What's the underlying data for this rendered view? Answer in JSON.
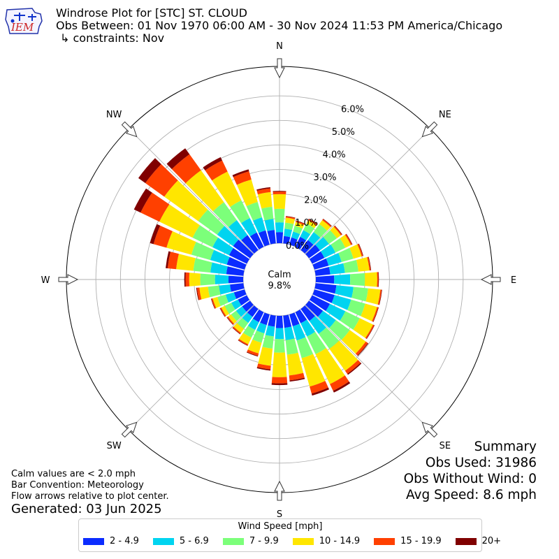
{
  "header": {
    "logo_text": "IEM",
    "title": "Windrose Plot for [STC] ST. CLOUD",
    "subtitle": "Obs Between: 01 Nov 1970 06:00 AM - 30 Nov 2024 11:53 PM America/Chicago",
    "constraints": "↳ constraints: Nov"
  },
  "notes": {
    "calm_note": "Calm values are < 2.0 mph",
    "bar_convention": "Bar Convention: Meteorology",
    "flow_note": "Flow arrows relative to plot center.",
    "generated": "Generated: 03 Jun 2025"
  },
  "summary": {
    "title": "Summary",
    "obs_used": "Obs Used: 31986",
    "obs_without_wind": "Obs Without Wind: 0",
    "avg_speed": "Avg Speed: 8.6 mph"
  },
  "center": {
    "label": "Calm",
    "value": "9.8%"
  },
  "legend": {
    "title": "Wind Speed [mph]",
    "items": [
      {
        "label": "2 - 4.9",
        "color": "#0b2cff"
      },
      {
        "label": "5 - 6.9",
        "color": "#00d4f0"
      },
      {
        "label": "7 - 9.9",
        "color": "#7cff7a"
      },
      {
        "label": "10 - 14.9",
        "color": "#ffe600"
      },
      {
        "label": "15 - 19.9",
        "color": "#ff4000"
      },
      {
        "label": "20+",
        "color": "#800000"
      }
    ]
  },
  "chart_data": {
    "type": "windrose",
    "calm_percent": 9.8,
    "radial_ticks": [
      "0.0%",
      "1.0%",
      "2.0%",
      "3.0%",
      "4.0%",
      "5.0%",
      "6.0%"
    ],
    "radial_max": 7.2,
    "compass_labels": [
      "N",
      "NE",
      "E",
      "SE",
      "S",
      "SW",
      "W",
      "NW"
    ],
    "directions_deg": [
      0,
      10,
      20,
      30,
      40,
      50,
      60,
      70,
      80,
      90,
      100,
      110,
      120,
      130,
      140,
      150,
      160,
      170,
      180,
      190,
      200,
      210,
      220,
      230,
      240,
      250,
      260,
      270,
      280,
      290,
      300,
      310,
      320,
      330,
      340,
      350
    ],
    "series": [
      {
        "name": "2 - 4.9",
        "values": [
          0.45,
          0.3,
          0.3,
          0.45,
          0.5,
          0.55,
          0.55,
          0.6,
          0.6,
          0.75,
          0.85,
          0.85,
          0.8,
          0.7,
          0.6,
          0.5,
          0.5,
          0.5,
          0.5,
          0.45,
          0.45,
          0.45,
          0.4,
          0.4,
          0.4,
          0.45,
          0.55,
          0.6,
          0.7,
          0.75,
          0.8,
          0.85,
          0.75,
          0.65,
          0.6,
          0.55
        ]
      },
      {
        "name": "5 - 6.9",
        "values": [
          0.4,
          0.3,
          0.25,
          0.3,
          0.4,
          0.45,
          0.5,
          0.55,
          0.6,
          0.65,
          0.7,
          0.7,
          0.7,
          0.65,
          0.65,
          0.6,
          0.6,
          0.5,
          0.45,
          0.4,
          0.35,
          0.35,
          0.3,
          0.3,
          0.3,
          0.35,
          0.45,
          0.55,
          0.65,
          0.7,
          0.75,
          0.8,
          0.75,
          0.65,
          0.55,
          0.45
        ]
      },
      {
        "name": "7 - 9.9",
        "values": [
          0.55,
          0.25,
          0.25,
          0.3,
          0.4,
          0.4,
          0.45,
          0.5,
          0.55,
          0.6,
          0.6,
          0.6,
          0.65,
          0.7,
          0.75,
          0.8,
          0.75,
          0.6,
          0.55,
          0.5,
          0.4,
          0.35,
          0.3,
          0.25,
          0.3,
          0.35,
          0.45,
          0.6,
          0.7,
          0.8,
          0.9,
          0.95,
          0.9,
          0.8,
          0.65,
          0.5
        ]
      },
      {
        "name": "10 - 14.9",
        "values": [
          0.6,
          0.2,
          0.15,
          0.15,
          0.2,
          0.2,
          0.25,
          0.35,
          0.45,
          0.5,
          0.5,
          0.5,
          0.6,
          0.8,
          1.1,
          1.35,
          1.2,
          0.85,
          1.0,
          0.7,
          0.45,
          0.3,
          0.2,
          0.15,
          0.15,
          0.2,
          0.35,
          0.45,
          0.7,
          1.05,
          1.5,
          1.7,
          1.6,
          1.3,
          0.95,
          0.6
        ]
      },
      {
        "name": "15 - 19.9",
        "values": [
          0.1,
          0.05,
          0.05,
          0.05,
          0.05,
          0.05,
          0.05,
          0.05,
          0.05,
          0.05,
          0.05,
          0.05,
          0.05,
          0.1,
          0.15,
          0.3,
          0.3,
          0.2,
          0.25,
          0.15,
          0.1,
          0.05,
          0.05,
          0.05,
          0.05,
          0.05,
          0.1,
          0.15,
          0.35,
          0.55,
          0.85,
          0.95,
          0.8,
          0.5,
          0.35,
          0.15
        ]
      },
      {
        "name": "20+",
        "values": [
          0.03,
          0.02,
          0.02,
          0.02,
          0.02,
          0.02,
          0.02,
          0.02,
          0.02,
          0.02,
          0.02,
          0.02,
          0.02,
          0.03,
          0.05,
          0.08,
          0.08,
          0.05,
          0.07,
          0.05,
          0.03,
          0.02,
          0.02,
          0.02,
          0.02,
          0.02,
          0.03,
          0.05,
          0.08,
          0.15,
          0.3,
          0.35,
          0.3,
          0.15,
          0.08,
          0.05
        ]
      }
    ]
  }
}
